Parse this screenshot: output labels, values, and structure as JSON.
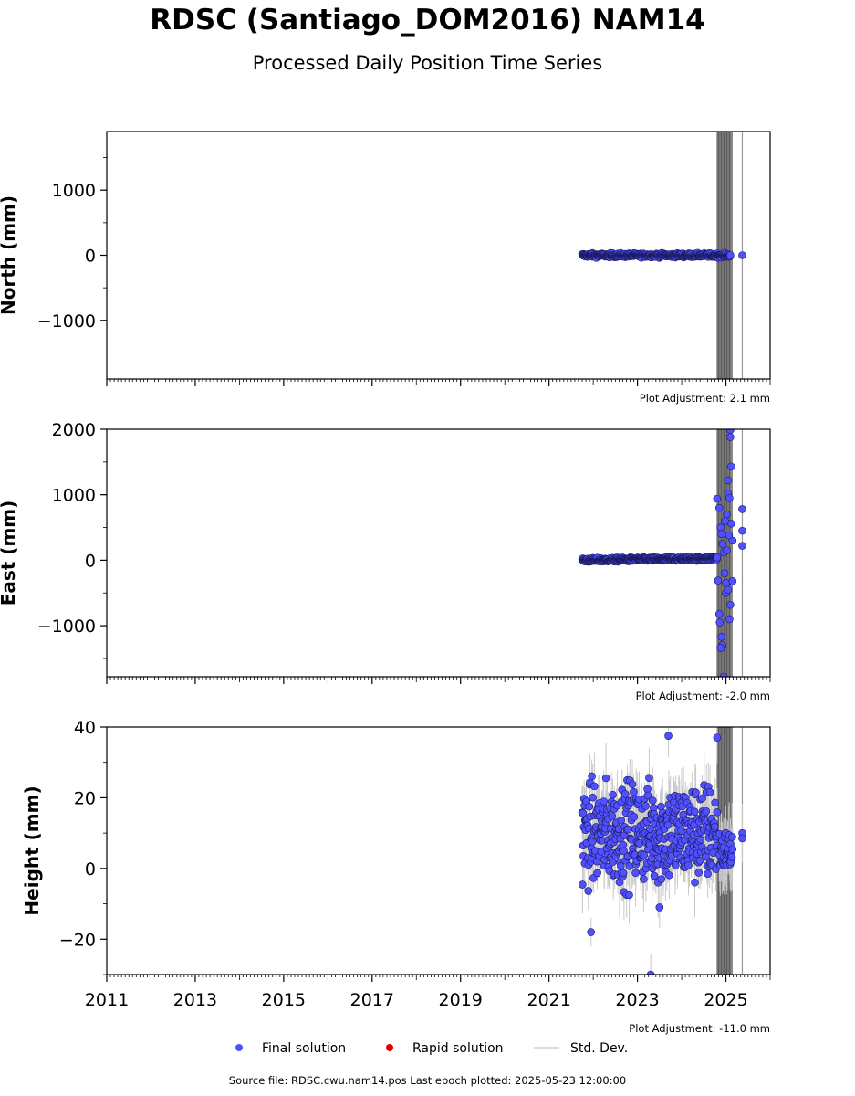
{
  "figure": {
    "title": "RDSC (Santiago_DOM2016) NAM14",
    "subtitle": "Processed Daily Position Time Series",
    "source": "Source file: RDSC.cwu.nam14.pos  Last epoch plotted: 2025-05-23 12:00:00",
    "legend": {
      "items": [
        {
          "label": "Final solution",
          "color": "#5050ff"
        },
        {
          "label": "Rapid solution",
          "color": "#e00000"
        },
        {
          "label": "Std. Dev.",
          "color": "#d0d0d0"
        }
      ]
    },
    "colors": {
      "final": "#5050ff",
      "edge": "#1a1a5a",
      "stddev": "#c8c8c8",
      "band": "#6e6e6e"
    }
  },
  "chart_data": [
    {
      "type": "scatter",
      "panel": "north",
      "ylabel": "North (mm)",
      "ylim": [
        -1900,
        1900
      ],
      "yticks": [
        -1000,
        0,
        1000
      ],
      "ytick_labels": [
        "−1000",
        "0",
        "1000"
      ],
      "xlim": [
        2011.0,
        2026.0
      ],
      "adjustment": "Plot Adjustment: 2.1 mm",
      "series": [
        {
          "name": "Final solution",
          "dense": {
            "x_start": 2021.75,
            "x_end": 2025.1,
            "y_center": 0,
            "spread": 15
          },
          "outliers": [
            [
              2025.37,
              0
            ]
          ]
        }
      ]
    },
    {
      "type": "scatter",
      "panel": "east",
      "ylabel": "East (mm)",
      "ylim": [
        -1780,
        2000
      ],
      "yticks": [
        -1000,
        0,
        1000,
        2000
      ],
      "ytick_labels": [
        "−1000",
        "0",
        "1000",
        "2000"
      ],
      "xlim": [
        2011.0,
        2026.0
      ],
      "adjustment": "Plot Adjustment: -2.0 mm",
      "series": [
        {
          "name": "Final solution",
          "dense": {
            "x_start": 2021.75,
            "x_end": 2024.8,
            "y_center": 0,
            "y_end": 30,
            "spread": 15
          },
          "outliers": [
            [
              2024.8,
              940
            ],
            [
              2024.85,
              800
            ],
            [
              2024.88,
              500
            ],
            [
              2024.9,
              400
            ],
            [
              2024.92,
              250
            ],
            [
              2024.95,
              120
            ],
            [
              2024.97,
              -200
            ],
            [
              2025.0,
              -350
            ],
            [
              2025.02,
              700
            ],
            [
              2025.05,
              1220
            ],
            [
              2025.05,
              1020
            ],
            [
              2025.08,
              950
            ],
            [
              2025.1,
              1880
            ],
            [
              2025.1,
              1990
            ],
            [
              2025.12,
              1430
            ],
            [
              2025.12,
              560
            ],
            [
              2025.15,
              300
            ],
            [
              2025.15,
              -320
            ],
            [
              2025.1,
              -680
            ],
            [
              2025.08,
              -900
            ],
            [
              2024.85,
              -820
            ],
            [
              2024.86,
              -950
            ],
            [
              2024.9,
              -1170
            ],
            [
              2024.92,
              -1300
            ],
            [
              2024.88,
              -1340
            ],
            [
              2024.95,
              -1780
            ],
            [
              2025.0,
              -500
            ],
            [
              2025.05,
              -450
            ],
            [
              2024.82,
              -310
            ],
            [
              2024.98,
              600
            ],
            [
              2025.02,
              150
            ],
            [
              2025.07,
              380
            ],
            [
              2025.37,
              780
            ],
            [
              2025.37,
              450
            ],
            [
              2025.37,
              220
            ]
          ]
        }
      ]
    },
    {
      "type": "scatter",
      "panel": "height",
      "ylabel": "Height (mm)",
      "ylim": [
        -30,
        40
      ],
      "yticks": [
        -20,
        0,
        20,
        40
      ],
      "ytick_labels": [
        "−20",
        "0",
        "20",
        "40"
      ],
      "xlim": [
        2011.0,
        2026.0
      ],
      "xticks": [
        2011,
        2013,
        2015,
        2017,
        2019,
        2021,
        2023,
        2025
      ],
      "xtick_labels": [
        "2011",
        "2013",
        "2015",
        "2017",
        "2019",
        "2021",
        "2023",
        "2025"
      ],
      "adjustment": "Plot Adjustment: -11.0 mm",
      "series": [
        {
          "name": "Final solution",
          "dense": {
            "x_start": 2021.75,
            "x_end": 2024.8,
            "y_center": 10,
            "spread": 7
          },
          "tail": {
            "x_start": 2024.85,
            "x_end": 2025.15,
            "y_center": 5,
            "spread": 3
          },
          "outliers": [
            [
              2021.95,
              -18
            ],
            [
              2023.3,
              -30
            ],
            [
              2023.7,
              37.5
            ],
            [
              2024.8,
              37
            ],
            [
              2025.37,
              10
            ],
            [
              2025.37,
              8.5
            ],
            [
              2023.5,
              -11
            ]
          ]
        }
      ]
    }
  ],
  "gaps": {
    "band_start": 2024.79,
    "band_end": 2025.13,
    "single_line": 2025.37
  }
}
